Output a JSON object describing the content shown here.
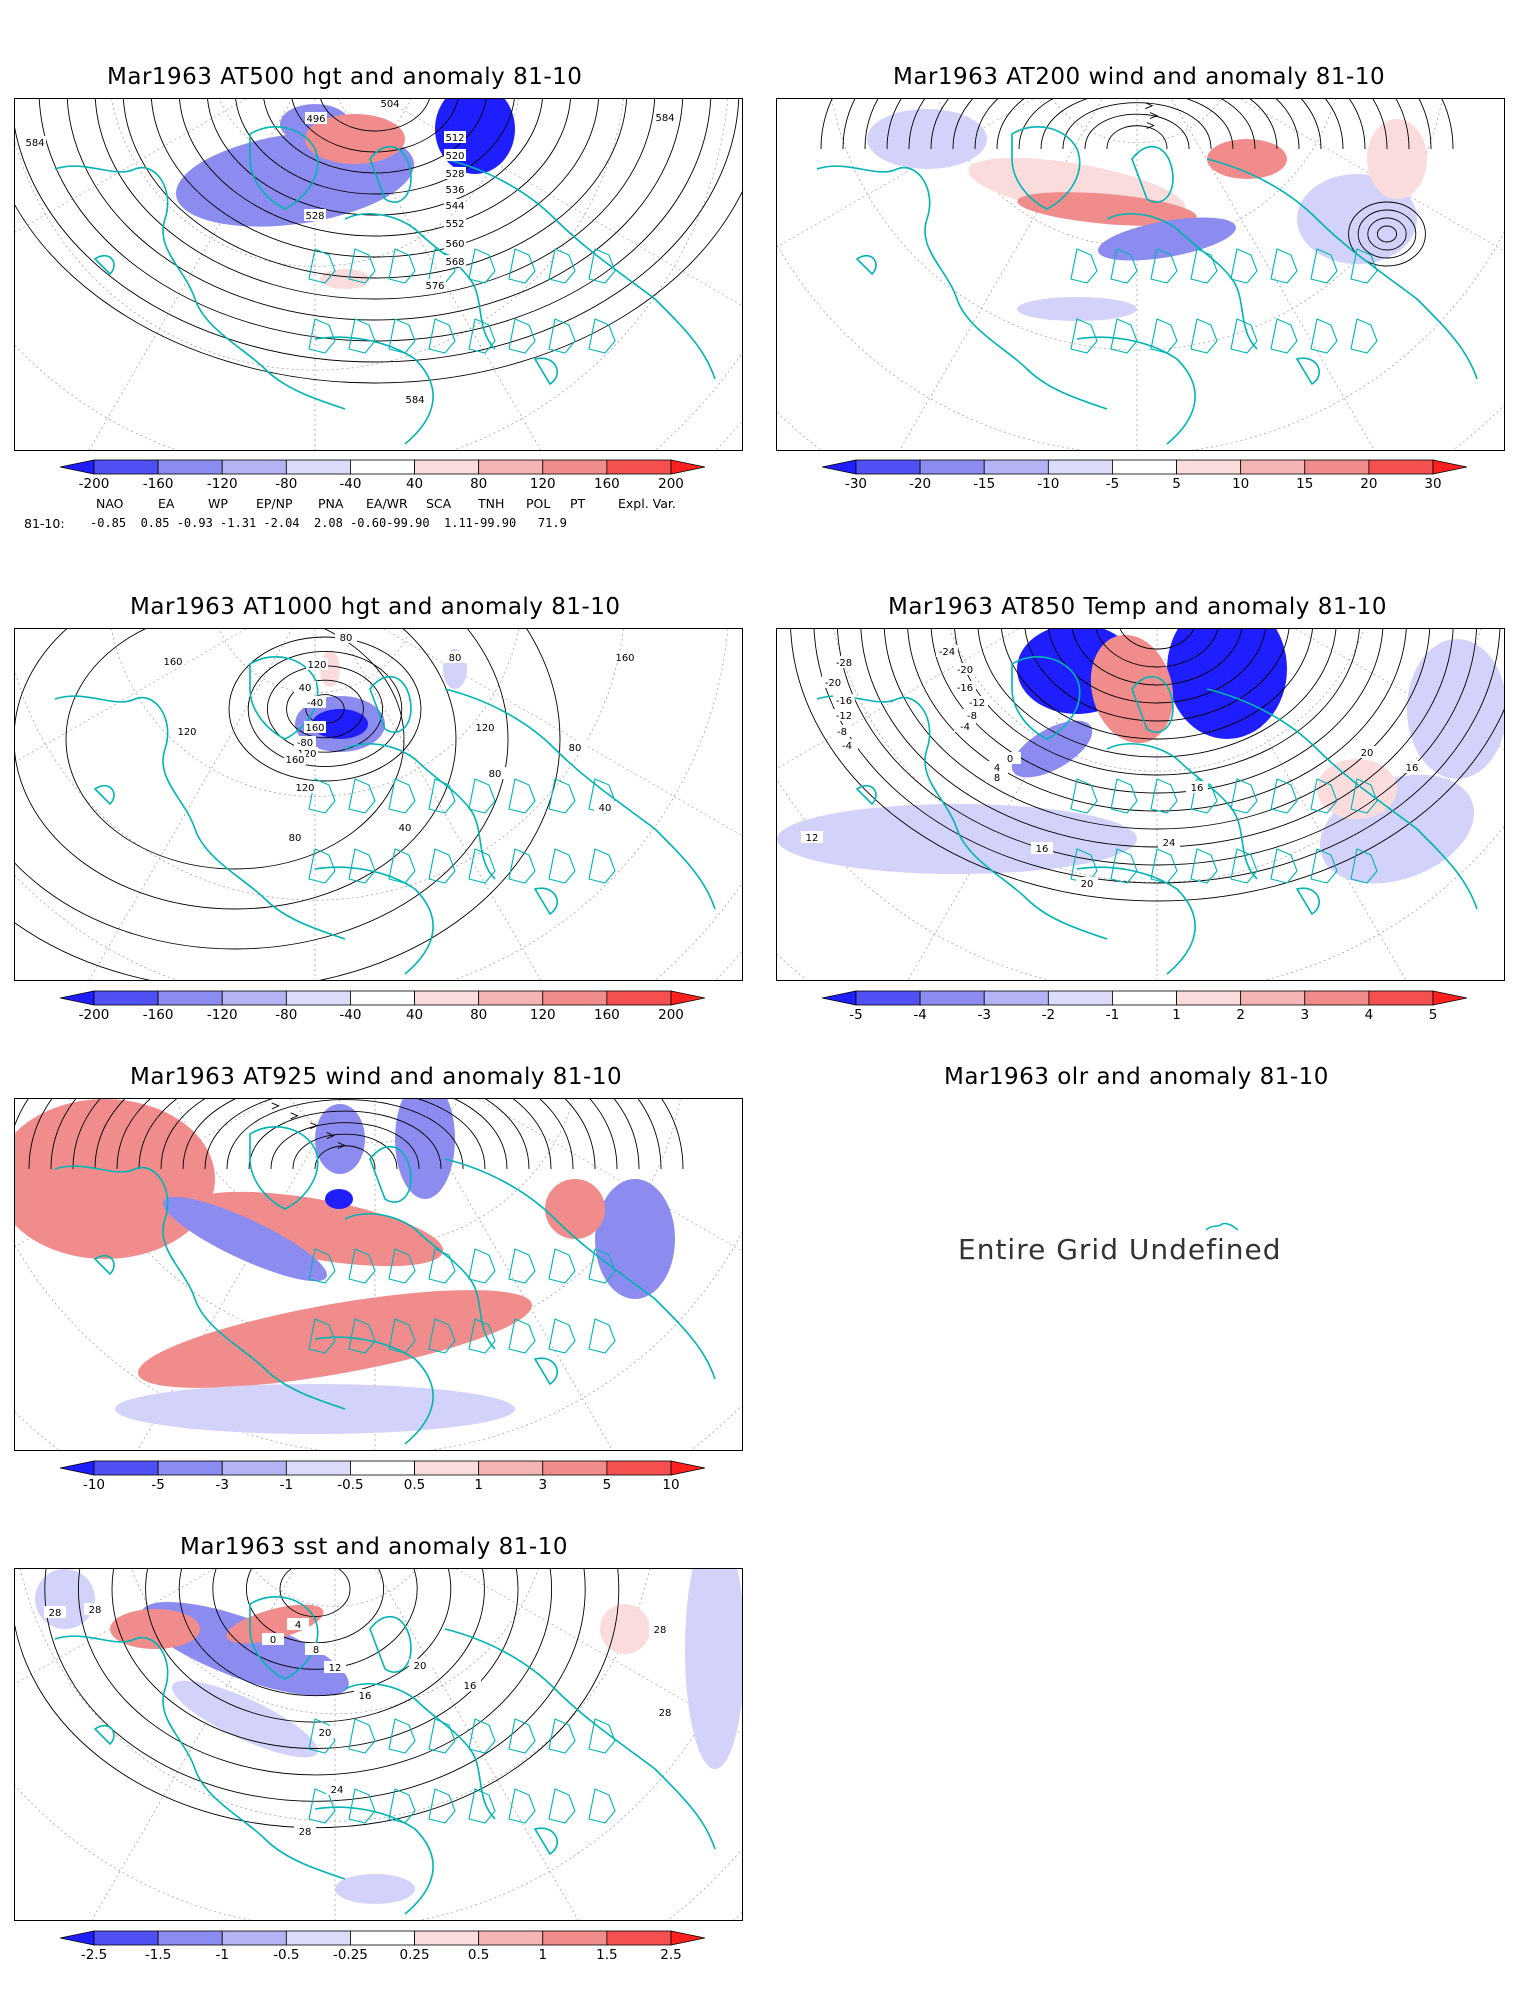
{
  "colors": {
    "coast": "#00b4b4",
    "contour": "#000000",
    "neg_strong": "#1e1eff",
    "neg_mid": "#8c8cf0",
    "neg_light": "#d2d2fa",
    "pos_light": "#fadcdc",
    "pos_mid": "#f08c8c",
    "pos_strong": "#ff2020"
  },
  "panels": [
    {
      "id": "z500",
      "title": "Mar1963 AT500 hgt and anomaly 81-10",
      "colorbar": [
        "-200",
        "-160",
        "-120",
        "-80",
        "-40",
        "40",
        "80",
        "120",
        "160",
        "200"
      ],
      "contour_labels": [
        "504",
        "496",
        "512",
        "520",
        "528",
        "536",
        "544",
        "552",
        "560",
        "568",
        "576",
        "584",
        "528",
        "584",
        "584"
      ]
    },
    {
      "id": "w200",
      "title": "Mar1963 AT200 wind and anomaly 81-10",
      "colorbar": [
        "-30",
        "-20",
        "-15",
        "-10",
        "-5",
        "5",
        "10",
        "15",
        "20",
        "30"
      ],
      "contour_labels": []
    },
    {
      "id": "z1000",
      "title": "Mar1963 AT1000 hgt and anomaly 81-10",
      "colorbar": [
        "-200",
        "-160",
        "-120",
        "-80",
        "-40",
        "40",
        "80",
        "120",
        "160",
        "200"
      ],
      "contour_labels": [
        "160",
        "120",
        "80",
        "120",
        "40",
        "-40",
        "-80",
        "120",
        "160",
        "160",
        "120",
        "80",
        "40",
        "40",
        "80",
        "80",
        "120",
        "80",
        "160"
      ]
    },
    {
      "id": "t850",
      "title": "Mar1963 AT850 Temp and anomaly 81-10",
      "colorbar": [
        "-5",
        "-4",
        "-3",
        "-2",
        "-1",
        "1",
        "2",
        "3",
        "4",
        "5"
      ],
      "contour_labels": [
        "-28",
        "-24",
        "-20",
        "-16",
        "-12",
        "-8",
        "-4",
        "0",
        "4",
        "8",
        "12",
        "16",
        "20",
        "24",
        "-20",
        "-16",
        "-12",
        "-8",
        "-4",
        "16",
        "20",
        "16"
      ]
    },
    {
      "id": "w925",
      "title": "Mar1963 AT925 wind and anomaly 81-10",
      "colorbar": [
        "-10",
        "-5",
        "-3",
        "-1",
        "-0.5",
        "0.5",
        "1",
        "3",
        "5",
        "10"
      ],
      "contour_labels": []
    },
    {
      "id": "olr",
      "title": "Mar1963 olr and anomaly 81-10",
      "message": "Entire Grid Undefined"
    },
    {
      "id": "sst",
      "title": "Mar1963 sst and anomaly 81-10",
      "colorbar": [
        "-2.5",
        "-1.5",
        "-1",
        "-0.5",
        "-0.25",
        "0.25",
        "0.5",
        "1",
        "1.5",
        "2.5"
      ],
      "contour_labels": [
        "28",
        "28",
        "4",
        "0",
        "8",
        "12",
        "16",
        "20",
        "24",
        "28",
        "28",
        "28",
        "20",
        "16"
      ]
    }
  ],
  "teleconnections": {
    "headers": [
      "NAO",
      "EA",
      "WP",
      "EP/NP",
      "PNA",
      "EA/WR",
      "SCA",
      "TNH",
      "POL",
      "PT",
      "Expl. Var."
    ],
    "row_label": "81-10:",
    "values": "-0.85  0.85 -0.93 -1.31 -2.04  2.08 -0.60-99.90  1.11-99.90   71.9"
  }
}
